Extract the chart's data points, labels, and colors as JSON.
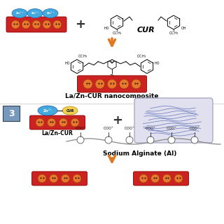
{
  "bg_color": "#ffffff",
  "arrow_color": "#e07820",
  "red_color": "#cc2222",
  "orange_circle_color": "#e87830",
  "blue_circle_color": "#44aadd",
  "yellow_color": "#f0d050",
  "light_gray": "#d8d8e8",
  "step3_box_color": "#6688aa",
  "label_nanocomposite": "La/Zn-CUR nanocomposite",
  "label_lazncur": "La/Zn-CUR",
  "label_sodium": "Sodium Alginate (Al)",
  "label_cur": "CUR"
}
